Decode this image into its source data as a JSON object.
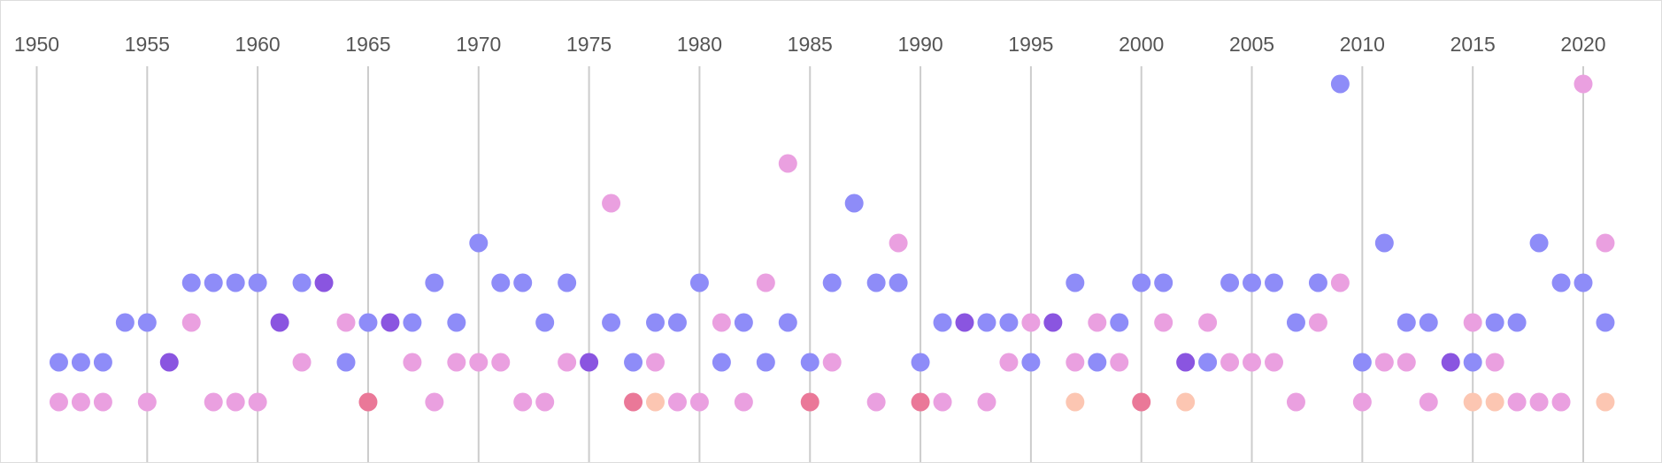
{
  "chart_data": {
    "type": "scatter",
    "title": "",
    "xlabel": "",
    "ylabel": "",
    "xlim": [
      1950,
      2021
    ],
    "ylim": [
      1,
      9
    ],
    "grid": true,
    "x_ticks": [
      1950,
      1955,
      1960,
      1965,
      1970,
      1975,
      1980,
      1985,
      1990,
      1995,
      2000,
      2005,
      2010,
      2015,
      2020
    ],
    "tick_labels": [
      "1950",
      "1955",
      "1960",
      "1965",
      "1970",
      "1975",
      "1980",
      "1985",
      "1990",
      "1995",
      "2000",
      "2005",
      "2010",
      "2015",
      "2020"
    ],
    "palette": {
      "blue": "#8e8cf8",
      "pink": "#eaa0e0",
      "purple": "#8a55e0",
      "red": "#ea7898",
      "peach": "#fcc6b2"
    },
    "points": [
      {
        "x": 1951,
        "y": 2,
        "color": "blue"
      },
      {
        "x": 1951,
        "y": 1,
        "color": "pink"
      },
      {
        "x": 1952,
        "y": 2,
        "color": "blue"
      },
      {
        "x": 1952,
        "y": 1,
        "color": "pink"
      },
      {
        "x": 1953,
        "y": 2,
        "color": "blue"
      },
      {
        "x": 1953,
        "y": 1,
        "color": "pink"
      },
      {
        "x": 1954,
        "y": 3,
        "color": "blue"
      },
      {
        "x": 1955,
        "y": 3,
        "color": "blue"
      },
      {
        "x": 1955,
        "y": 1,
        "color": "pink"
      },
      {
        "x": 1956,
        "y": 2,
        "color": "purple"
      },
      {
        "x": 1957,
        "y": 4,
        "color": "blue"
      },
      {
        "x": 1957,
        "y": 3,
        "color": "pink"
      },
      {
        "x": 1958,
        "y": 4,
        "color": "blue"
      },
      {
        "x": 1958,
        "y": 1,
        "color": "pink"
      },
      {
        "x": 1959,
        "y": 4,
        "color": "blue"
      },
      {
        "x": 1959,
        "y": 1,
        "color": "pink"
      },
      {
        "x": 1960,
        "y": 4,
        "color": "blue"
      },
      {
        "x": 1960,
        "y": 1,
        "color": "pink"
      },
      {
        "x": 1961,
        "y": 3,
        "color": "purple"
      },
      {
        "x": 1962,
        "y": 4,
        "color": "blue"
      },
      {
        "x": 1962,
        "y": 2,
        "color": "pink"
      },
      {
        "x": 1963,
        "y": 4,
        "color": "purple"
      },
      {
        "x": 1964,
        "y": 3,
        "color": "pink"
      },
      {
        "x": 1964,
        "y": 2,
        "color": "blue"
      },
      {
        "x": 1965,
        "y": 3,
        "color": "blue"
      },
      {
        "x": 1965,
        "y": 1,
        "color": "red"
      },
      {
        "x": 1966,
        "y": 3,
        "color": "purple"
      },
      {
        "x": 1967,
        "y": 3,
        "color": "blue"
      },
      {
        "x": 1967,
        "y": 2,
        "color": "pink"
      },
      {
        "x": 1968,
        "y": 4,
        "color": "blue"
      },
      {
        "x": 1968,
        "y": 1,
        "color": "pink"
      },
      {
        "x": 1969,
        "y": 3,
        "color": "blue"
      },
      {
        "x": 1969,
        "y": 2,
        "color": "pink"
      },
      {
        "x": 1970,
        "y": 5,
        "color": "blue"
      },
      {
        "x": 1970,
        "y": 2,
        "color": "pink"
      },
      {
        "x": 1971,
        "y": 4,
        "color": "blue"
      },
      {
        "x": 1971,
        "y": 2,
        "color": "pink"
      },
      {
        "x": 1972,
        "y": 4,
        "color": "blue"
      },
      {
        "x": 1972,
        "y": 1,
        "color": "pink"
      },
      {
        "x": 1973,
        "y": 3,
        "color": "blue"
      },
      {
        "x": 1973,
        "y": 1,
        "color": "pink"
      },
      {
        "x": 1974,
        "y": 4,
        "color": "blue"
      },
      {
        "x": 1974,
        "y": 2,
        "color": "pink"
      },
      {
        "x": 1975,
        "y": 2,
        "color": "purple"
      },
      {
        "x": 1976,
        "y": 6,
        "color": "pink"
      },
      {
        "x": 1976,
        "y": 3,
        "color": "blue"
      },
      {
        "x": 1977,
        "y": 2,
        "color": "blue"
      },
      {
        "x": 1977,
        "y": 1,
        "color": "red"
      },
      {
        "x": 1978,
        "y": 3,
        "color": "blue"
      },
      {
        "x": 1978,
        "y": 2,
        "color": "pink"
      },
      {
        "x": 1978,
        "y": 1,
        "color": "peach"
      },
      {
        "x": 1979,
        "y": 3,
        "color": "blue"
      },
      {
        "x": 1979,
        "y": 1,
        "color": "pink"
      },
      {
        "x": 1980,
        "y": 4,
        "color": "blue"
      },
      {
        "x": 1980,
        "y": 1,
        "color": "pink"
      },
      {
        "x": 1981,
        "y": 3,
        "color": "pink"
      },
      {
        "x": 1981,
        "y": 2,
        "color": "blue"
      },
      {
        "x": 1982,
        "y": 3,
        "color": "blue"
      },
      {
        "x": 1982,
        "y": 1,
        "color": "pink"
      },
      {
        "x": 1983,
        "y": 4,
        "color": "pink"
      },
      {
        "x": 1983,
        "y": 2,
        "color": "blue"
      },
      {
        "x": 1984,
        "y": 7,
        "color": "pink"
      },
      {
        "x": 1984,
        "y": 3,
        "color": "blue"
      },
      {
        "x": 1985,
        "y": 2,
        "color": "blue"
      },
      {
        "x": 1985,
        "y": 1,
        "color": "red"
      },
      {
        "x": 1986,
        "y": 4,
        "color": "blue"
      },
      {
        "x": 1986,
        "y": 2,
        "color": "pink"
      },
      {
        "x": 1987,
        "y": 6,
        "color": "blue"
      },
      {
        "x": 1988,
        "y": 4,
        "color": "blue"
      },
      {
        "x": 1988,
        "y": 1,
        "color": "pink"
      },
      {
        "x": 1989,
        "y": 5,
        "color": "pink"
      },
      {
        "x": 1989,
        "y": 4,
        "color": "blue"
      },
      {
        "x": 1990,
        "y": 2,
        "color": "blue"
      },
      {
        "x": 1990,
        "y": 1,
        "color": "red"
      },
      {
        "x": 1991,
        "y": 3,
        "color": "blue"
      },
      {
        "x": 1991,
        "y": 1,
        "color": "pink"
      },
      {
        "x": 1992,
        "y": 3,
        "color": "purple"
      },
      {
        "x": 1993,
        "y": 3,
        "color": "blue"
      },
      {
        "x": 1993,
        "y": 1,
        "color": "pink"
      },
      {
        "x": 1994,
        "y": 3,
        "color": "blue"
      },
      {
        "x": 1994,
        "y": 2,
        "color": "pink"
      },
      {
        "x": 1995,
        "y": 3,
        "color": "pink"
      },
      {
        "x": 1995,
        "y": 2,
        "color": "blue"
      },
      {
        "x": 1996,
        "y": 3,
        "color": "purple"
      },
      {
        "x": 1997,
        "y": 4,
        "color": "blue"
      },
      {
        "x": 1997,
        "y": 2,
        "color": "pink"
      },
      {
        "x": 1997,
        "y": 1,
        "color": "peach"
      },
      {
        "x": 1998,
        "y": 3,
        "color": "pink"
      },
      {
        "x": 1998,
        "y": 2,
        "color": "blue"
      },
      {
        "x": 1999,
        "y": 3,
        "color": "blue"
      },
      {
        "x": 1999,
        "y": 2,
        "color": "pink"
      },
      {
        "x": 2000,
        "y": 4,
        "color": "blue"
      },
      {
        "x": 2000,
        "y": 1,
        "color": "red"
      },
      {
        "x": 2001,
        "y": 4,
        "color": "blue"
      },
      {
        "x": 2001,
        "y": 3,
        "color": "pink"
      },
      {
        "x": 2002,
        "y": 2,
        "color": "purple"
      },
      {
        "x": 2002,
        "y": 1,
        "color": "peach"
      },
      {
        "x": 2003,
        "y": 3,
        "color": "pink"
      },
      {
        "x": 2003,
        "y": 2,
        "color": "blue"
      },
      {
        "x": 2004,
        "y": 4,
        "color": "blue"
      },
      {
        "x": 2004,
        "y": 2,
        "color": "pink"
      },
      {
        "x": 2005,
        "y": 4,
        "color": "blue"
      },
      {
        "x": 2005,
        "y": 2,
        "color": "pink"
      },
      {
        "x": 2006,
        "y": 4,
        "color": "blue"
      },
      {
        "x": 2006,
        "y": 2,
        "color": "pink"
      },
      {
        "x": 2007,
        "y": 3,
        "color": "blue"
      },
      {
        "x": 2007,
        "y": 1,
        "color": "pink"
      },
      {
        "x": 2008,
        "y": 4,
        "color": "blue"
      },
      {
        "x": 2008,
        "y": 3,
        "color": "pink"
      },
      {
        "x": 2009,
        "y": 9,
        "color": "blue"
      },
      {
        "x": 2009,
        "y": 4,
        "color": "pink"
      },
      {
        "x": 2010,
        "y": 2,
        "color": "blue"
      },
      {
        "x": 2010,
        "y": 1,
        "color": "pink"
      },
      {
        "x": 2011,
        "y": 5,
        "color": "blue"
      },
      {
        "x": 2011,
        "y": 2,
        "color": "pink"
      },
      {
        "x": 2012,
        "y": 3,
        "color": "blue"
      },
      {
        "x": 2012,
        "y": 2,
        "color": "pink"
      },
      {
        "x": 2013,
        "y": 3,
        "color": "blue"
      },
      {
        "x": 2013,
        "y": 1,
        "color": "pink"
      },
      {
        "x": 2014,
        "y": 2,
        "color": "purple"
      },
      {
        "x": 2015,
        "y": 3,
        "color": "pink"
      },
      {
        "x": 2015,
        "y": 2,
        "color": "blue"
      },
      {
        "x": 2015,
        "y": 1,
        "color": "peach"
      },
      {
        "x": 2016,
        "y": 3,
        "color": "blue"
      },
      {
        "x": 2016,
        "y": 2,
        "color": "pink"
      },
      {
        "x": 2016,
        "y": 1,
        "color": "peach"
      },
      {
        "x": 2017,
        "y": 3,
        "color": "blue"
      },
      {
        "x": 2017,
        "y": 1,
        "color": "pink"
      },
      {
        "x": 2018,
        "y": 5,
        "color": "blue"
      },
      {
        "x": 2018,
        "y": 1,
        "color": "pink"
      },
      {
        "x": 2019,
        "y": 4,
        "color": "blue"
      },
      {
        "x": 2019,
        "y": 1,
        "color": "pink"
      },
      {
        "x": 2020,
        "y": 9,
        "color": "pink"
      },
      {
        "x": 2020,
        "y": 4,
        "color": "blue"
      },
      {
        "x": 2021,
        "y": 5,
        "color": "pink"
      },
      {
        "x": 2021,
        "y": 3,
        "color": "blue"
      },
      {
        "x": 2021,
        "y": 1,
        "color": "peach"
      }
    ]
  }
}
